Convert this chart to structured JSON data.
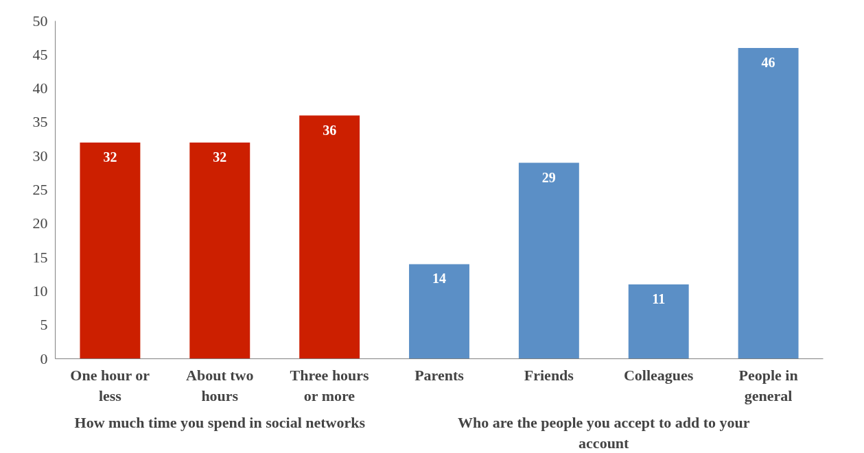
{
  "chart_data": {
    "type": "bar",
    "categories": [
      "One hour or less",
      "About two hours",
      "Three hours or more",
      "Parents",
      "Friends",
      "Colleagues",
      "People in general"
    ],
    "values": [
      32,
      32,
      36,
      14,
      29,
      11,
      46
    ],
    "colors": [
      "#cc1f00",
      "#cc1f00",
      "#cc1f00",
      "#5b8fc6",
      "#5b8fc6",
      "#5b8fc6",
      "#5b8fc6"
    ],
    "ylim": [
      0,
      50
    ],
    "yticks": [
      0,
      5,
      10,
      15,
      20,
      25,
      30,
      35,
      40,
      45,
      50
    ],
    "data_labels": true,
    "grid": false,
    "annotations": [
      "How much time you spend in social networks",
      "Who are the people you accept to add to your account"
    ]
  }
}
